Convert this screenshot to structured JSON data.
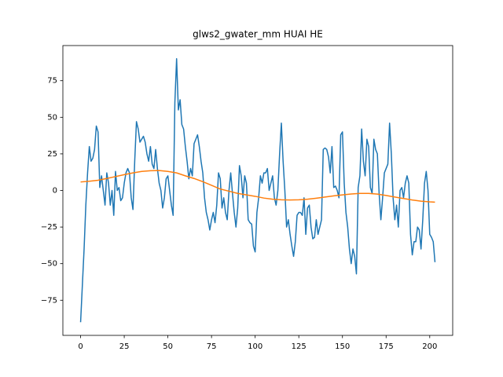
{
  "chart_data": {
    "type": "line",
    "title": "glws2_gwater_mm HUAI HE",
    "xlim": [
      -10.15,
      213.15
    ],
    "ylim": [
      -99,
      99
    ],
    "xticks": [
      0,
      25,
      50,
      75,
      100,
      125,
      150,
      175,
      200
    ],
    "yticks": [
      {
        "value": -75,
        "label": "−75"
      },
      {
        "value": -50,
        "label": "−50"
      },
      {
        "value": -25,
        "label": "−25"
      },
      0,
      25,
      50,
      75
    ],
    "series": [
      {
        "color": "#1f77b4",
        "x": [
          0,
          1,
          2,
          3,
          4,
          5,
          6,
          7,
          8,
          9,
          10,
          11,
          12,
          13,
          14,
          15,
          16,
          17,
          18,
          19,
          20,
          21,
          22,
          23,
          24,
          25,
          26,
          27,
          28,
          29,
          30,
          31,
          32,
          33,
          34,
          35,
          36,
          37,
          38,
          39,
          40,
          41,
          42,
          43,
          44,
          45,
          46,
          47,
          48,
          49,
          50,
          51,
          52,
          53,
          54,
          55,
          56,
          57,
          58,
          59,
          60,
          61,
          62,
          63,
          64,
          65,
          66,
          67,
          68,
          69,
          70,
          71,
          72,
          73,
          74,
          75,
          76,
          77,
          78,
          79,
          80,
          81,
          82,
          83,
          84,
          85,
          86,
          87,
          88,
          89,
          90,
          91,
          92,
          93,
          94,
          95,
          96,
          97,
          98,
          99,
          100,
          101,
          102,
          103,
          104,
          105,
          106,
          107,
          108,
          109,
          110,
          111,
          112,
          113,
          114,
          115,
          116,
          117,
          118,
          119,
          120,
          121,
          122,
          123,
          124,
          125,
          126,
          127,
          128,
          129,
          130,
          131,
          132,
          133,
          134,
          135,
          136,
          137,
          138,
          139,
          140,
          141,
          142,
          143,
          144,
          145,
          146,
          147,
          148,
          149,
          150,
          151,
          152,
          153,
          154,
          155,
          156,
          157,
          158,
          159,
          160,
          161,
          162,
          163,
          164,
          165,
          166,
          167,
          168,
          169,
          170,
          171,
          172,
          173,
          174,
          175,
          176,
          177,
          178,
          179,
          180,
          181,
          182,
          183,
          184,
          185,
          186,
          187,
          188,
          189,
          190,
          191,
          192,
          193,
          194,
          195,
          196,
          197,
          198,
          199,
          200,
          201,
          202,
          203
        ],
        "values": [
          -90,
          -65,
          -40,
          -10,
          12,
          30,
          20,
          22,
          28,
          44,
          40,
          2,
          10,
          0,
          -10,
          12,
          5,
          -10,
          0,
          -17,
          13,
          0,
          2,
          -7,
          -5,
          5,
          12,
          15,
          12,
          -5,
          -13,
          20,
          47,
          42,
          33,
          35,
          37,
          33,
          25,
          20,
          30,
          18,
          15,
          28,
          15,
          5,
          0,
          -12,
          -5,
          8,
          10,
          0,
          -10,
          -17,
          60,
          90,
          55,
          62,
          45,
          42,
          30,
          20,
          8,
          15,
          10,
          32,
          35,
          38,
          30,
          20,
          12,
          -5,
          -15,
          -20,
          -27,
          -20,
          -15,
          -22,
          -10,
          12,
          8,
          -12,
          -5,
          -15,
          -20,
          0,
          12,
          -2,
          -15,
          -25,
          -12,
          17,
          10,
          -5,
          10,
          5,
          -20,
          -22,
          -23,
          -38,
          -42,
          -15,
          -5,
          10,
          5,
          12,
          12,
          15,
          0,
          5,
          10,
          -5,
          -10,
          0,
          25,
          46,
          20,
          0,
          -25,
          -20,
          -30,
          -38,
          -45,
          -35,
          -17,
          -15,
          -15,
          -17,
          -5,
          -30,
          -12,
          -10,
          -25,
          -33,
          -32,
          -20,
          -30,
          -25,
          -20,
          28,
          29,
          28,
          23,
          12,
          30,
          2,
          3,
          0,
          -5,
          38,
          40,
          5,
          -15,
          -25,
          -40,
          -50,
          -40,
          -45,
          -57,
          2,
          10,
          42,
          20,
          10,
          35,
          30,
          2,
          -2,
          35,
          28,
          25,
          -2,
          -20,
          -5,
          12,
          15,
          18,
          46,
          25,
          -5,
          -20,
          -10,
          -25,
          0,
          2,
          -5,
          5,
          10,
          5,
          -30,
          -44,
          -35,
          -35,
          -25,
          -27,
          -40,
          -20,
          5,
          13,
          0,
          -30,
          -32,
          -35,
          -49
        ]
      },
      {
        "color": "#ff7f0e",
        "x": [
          0,
          5,
          10,
          15,
          20,
          25,
          30,
          35,
          40,
          45,
          50,
          55,
          60,
          65,
          70,
          75,
          80,
          85,
          90,
          95,
          100,
          105,
          110,
          115,
          120,
          125,
          130,
          135,
          140,
          145,
          150,
          155,
          160,
          165,
          170,
          175,
          180,
          185,
          190,
          195,
          200,
          203
        ],
        "values": [
          5.8,
          6.3,
          7,
          8.2,
          9.5,
          10.8,
          12,
          13,
          13.5,
          13.6,
          13,
          12,
          10,
          8.2,
          6,
          3.5,
          1,
          -0.5,
          -2,
          -3,
          -4,
          -5.2,
          -6,
          -6.4,
          -6.5,
          -6.4,
          -6,
          -5.3,
          -4.5,
          -3.7,
          -3,
          -2.4,
          -2,
          -2,
          -2.5,
          -3.4,
          -4.5,
          -5.5,
          -6.5,
          -7.3,
          -7.8,
          -8
        ]
      }
    ]
  }
}
